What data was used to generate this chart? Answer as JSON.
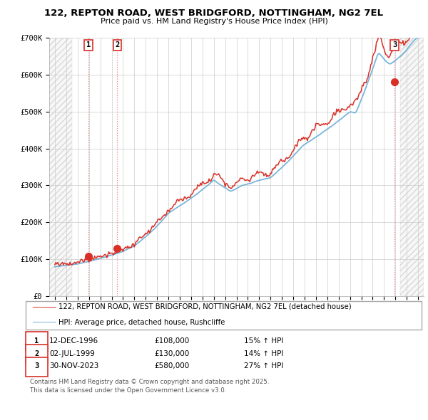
{
  "title": "122, REPTON ROAD, WEST BRIDGFORD, NOTTINGHAM, NG2 7EL",
  "subtitle": "Price paid vs. HM Land Registry's House Price Index (HPI)",
  "ylim": [
    0,
    700000
  ],
  "yticks": [
    0,
    100000,
    200000,
    300000,
    400000,
    500000,
    600000,
    700000
  ],
  "ytick_labels": [
    "£0",
    "£100K",
    "£200K",
    "£300K",
    "£400K",
    "£500K",
    "£600K",
    "£700K"
  ],
  "xlim_start": 1993.5,
  "xlim_end": 2026.5,
  "hpi_color": "#6baed6",
  "price_color": "#d73027",
  "bg_color": "#ffffff",
  "grid_color": "#cccccc",
  "sale1_year": 1996.95,
  "sale1_price": 108000,
  "sale2_year": 1999.5,
  "sale2_price": 130000,
  "sale3_year": 2023.92,
  "sale3_price": 580000,
  "hatch_left_end": 1995.5,
  "hatch_right_start": 2024.42,
  "table_rows": [
    {
      "num": "1",
      "date": "12-DEC-1996",
      "price": "£108,000",
      "hpi": "15% ↑ HPI"
    },
    {
      "num": "2",
      "date": "02-JUL-1999",
      "price": "£130,000",
      "hpi": "14% ↑ HPI"
    },
    {
      "num": "3",
      "date": "30-NOV-2023",
      "price": "£580,000",
      "hpi": "27% ↑ HPI"
    }
  ],
  "legend_line1": "122, REPTON ROAD, WEST BRIDGFORD, NOTTINGHAM, NG2 7EL (detached house)",
  "legend_line2": "HPI: Average price, detached house, Rushcliffe",
  "copyright": "Contains HM Land Registry data © Crown copyright and database right 2025.\nThis data is licensed under the Open Government Licence v3.0."
}
